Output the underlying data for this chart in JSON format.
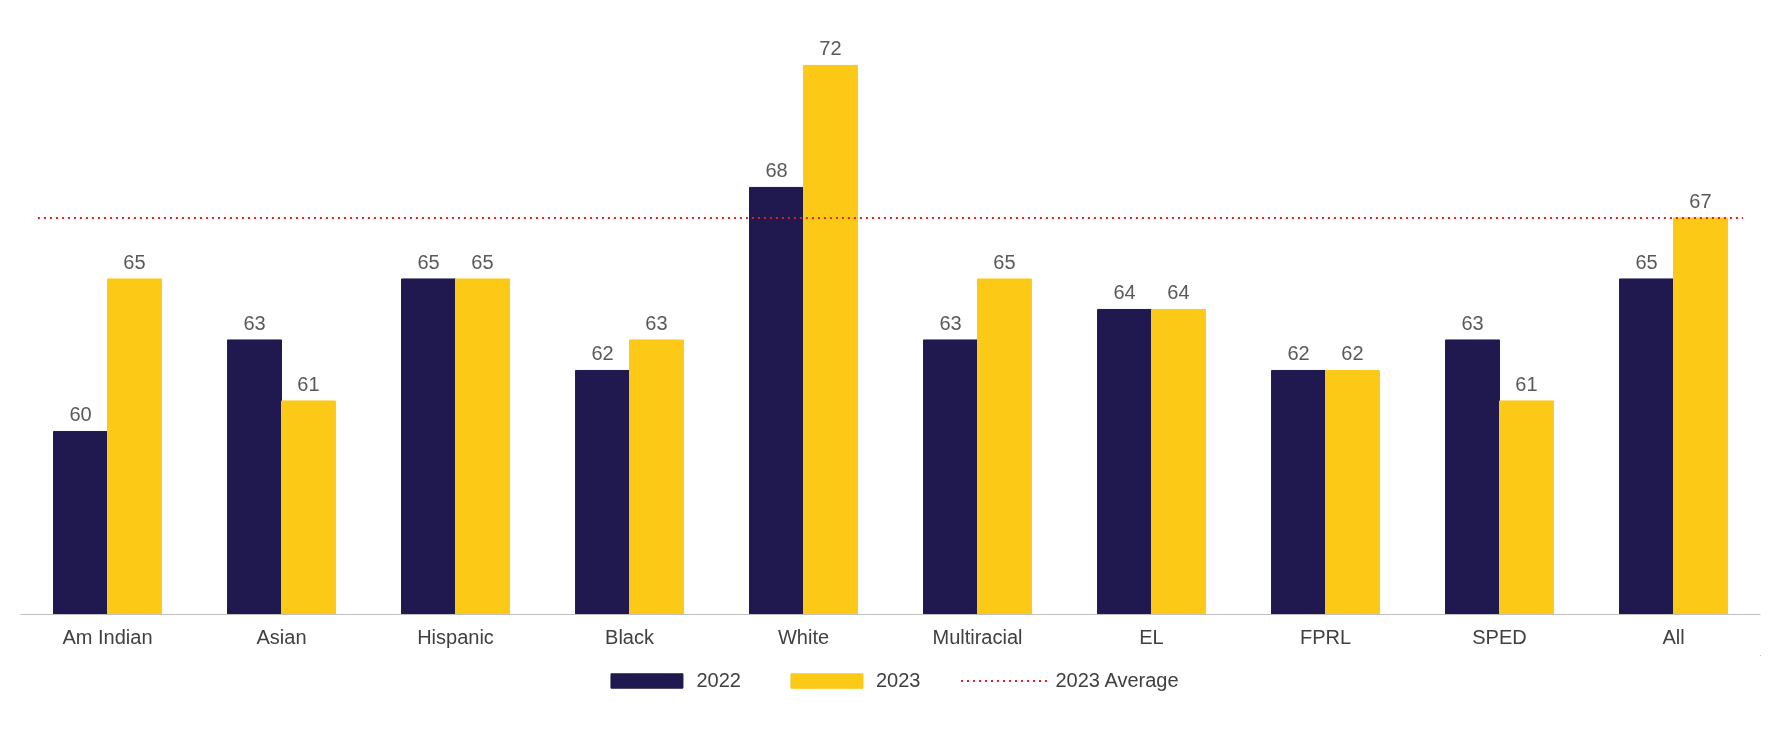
{
  "chart_data": {
    "type": "bar",
    "categories": [
      "Am Indian",
      "Asian",
      "Hispanic",
      "Black",
      "White",
      "Multiracial",
      "EL",
      "FPRL",
      "SPED",
      "All"
    ],
    "series": [
      {
        "name": "2022",
        "color": "#20194f",
        "values": [
          60,
          63,
          65,
          62,
          68,
          63,
          64,
          62,
          63,
          65
        ]
      },
      {
        "name": "2023",
        "color": "#fcc917",
        "values": [
          65,
          61,
          65,
          63,
          72,
          65,
          64,
          62,
          61,
          67
        ]
      }
    ],
    "ylim": [
      54,
      72
    ],
    "data_labels": true,
    "grid": false,
    "legend": "bottom",
    "tick_labels": "x",
    "ref_lines": [
      {
        "axis": "y",
        "value": 67,
        "label": "2023 Average",
        "color": "#e02020",
        "line_style": "dotted"
      }
    ]
  }
}
